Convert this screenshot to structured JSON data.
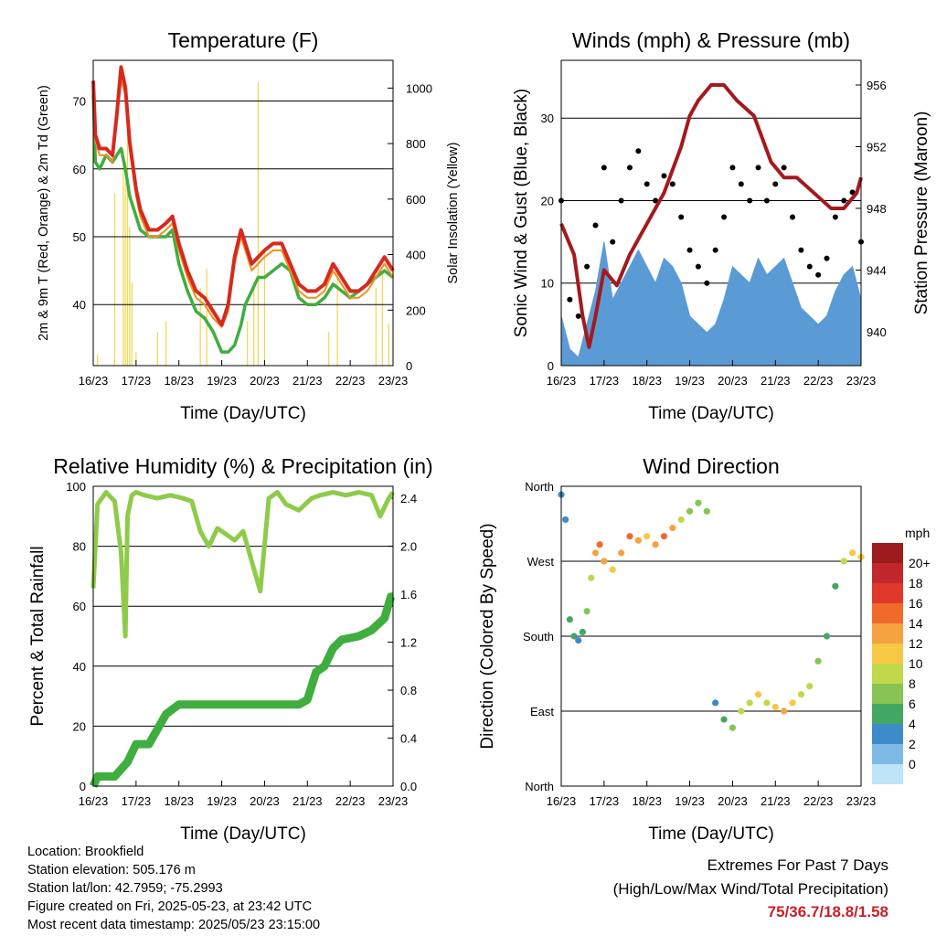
{
  "time_ticks": [
    "16/23",
    "17/23",
    "18/23",
    "19/23",
    "20/23",
    "21/23",
    "22/23",
    "23/23"
  ],
  "time_label": "Time (Day/UTC)",
  "colors": {
    "temp_red": "#d62a1e",
    "temp_orange": "#f28e1e",
    "dewpoint_green": "#3fae3f",
    "solar_yellow": "#f5d54a",
    "gust_black": "#000000",
    "wind_blue": "#5b9bd5",
    "pressure_maroon": "#a31a1f",
    "rh_light_green": "#8fcb4a",
    "precip_green": "#3fae3f",
    "extremes_red": "#c8202a"
  },
  "info": {
    "location": "Location: Brookfield",
    "elevation": "Station elevation: 505.176 m",
    "latlon": "Station lat/lon: 42.7959; -75.2993",
    "created": "Figure created on Fri, 2025-05-23, at 23:42 UTC",
    "latest": "Most recent data timestamp: 2025/05/23 23:15:00"
  },
  "extremes": {
    "line1": "Extremes For Past 7 Days",
    "line2": "(High/Low/Max Wind/Total Precipitation)",
    "values": "75/36.7/18.8/1.58"
  },
  "chart_data": [
    {
      "type": "line",
      "title": "Temperature (F)",
      "ylabel": "2m & 9m T (Red, Orange) & 2m Td (Green)",
      "ylabel_right": "Solar Insolation (Yellow)",
      "xlabel": "Time (Day/UTC)",
      "ylim": [
        31,
        76
      ],
      "yticks": [
        40,
        50,
        60,
        70
      ],
      "ylim_right": [
        0,
        1100
      ],
      "yticks_right": [
        0,
        200,
        400,
        600,
        800,
        1000
      ],
      "x_unit": "days since 16/23",
      "series": [
        {
          "color": "temp_red",
          "x": [
            0,
            0.05,
            0.15,
            0.3,
            0.45,
            0.55,
            0.65,
            0.75,
            0.85,
            1.0,
            1.1,
            1.3,
            1.5,
            1.7,
            1.85,
            2.0,
            2.2,
            2.4,
            2.6,
            2.8,
            3.0,
            3.15,
            3.3,
            3.45,
            3.55,
            3.7,
            3.85,
            4.0,
            4.2,
            4.4,
            4.6,
            4.8,
            5.0,
            5.2,
            5.4,
            5.6,
            5.8,
            6.0,
            6.2,
            6.4,
            6.6,
            6.8,
            7.0
          ],
          "y": [
            73,
            65,
            63,
            63,
            62,
            68,
            75,
            72,
            64,
            57,
            54,
            51,
            51,
            52,
            53,
            49,
            45,
            42,
            41,
            39,
            37,
            40,
            47,
            51,
            49,
            46,
            47,
            48,
            49,
            49,
            46,
            43,
            42,
            42,
            43,
            46,
            44,
            42,
            42,
            43,
            45,
            47,
            45
          ]
        },
        {
          "color": "temp_orange",
          "x": [
            0,
            0.05,
            0.15,
            0.3,
            0.45,
            0.55,
            0.65,
            0.75,
            0.85,
            1.0,
            1.1,
            1.3,
            1.5,
            1.7,
            1.85,
            2.0,
            2.2,
            2.4,
            2.6,
            2.8,
            3.0,
            3.15,
            3.3,
            3.45,
            3.55,
            3.7,
            3.85,
            4.0,
            4.2,
            4.4,
            4.6,
            4.8,
            5.0,
            5.2,
            5.4,
            5.6,
            5.8,
            6.0,
            6.2,
            6.4,
            6.6,
            6.8,
            7.0
          ],
          "y": [
            72,
            64,
            62,
            62,
            61,
            67,
            73,
            71,
            63,
            56,
            53,
            50,
            50,
            51,
            52,
            48,
            44,
            41,
            40,
            38,
            36.7,
            39,
            46,
            50,
            48,
            45,
            46,
            47,
            48,
            48,
            45,
            42,
            41,
            41,
            42,
            45,
            43,
            41,
            41,
            42,
            44,
            46,
            44
          ]
        },
        {
          "color": "dewpoint_green",
          "x": [
            0,
            0.05,
            0.15,
            0.3,
            0.45,
            0.55,
            0.65,
            0.75,
            0.85,
            1.0,
            1.1,
            1.3,
            1.5,
            1.7,
            1.85,
            2.0,
            2.2,
            2.4,
            2.6,
            2.8,
            3.0,
            3.15,
            3.3,
            3.45,
            3.55,
            3.7,
            3.85,
            4.0,
            4.2,
            4.4,
            4.6,
            4.8,
            5.0,
            5.2,
            5.4,
            5.6,
            5.8,
            6.0,
            6.2,
            6.4,
            6.6,
            6.8,
            7.0
          ],
          "y": [
            71,
            61,
            60,
            62,
            61,
            62,
            63,
            60,
            56,
            53,
            51,
            50,
            50,
            50,
            51,
            46,
            42,
            39,
            38,
            36,
            33,
            33,
            34,
            37,
            40,
            42,
            44,
            44,
            45,
            46,
            45,
            41,
            40,
            40,
            41,
            43,
            42,
            41,
            42,
            43,
            44,
            45,
            44
          ]
        },
        {
          "color": "solar_yellow",
          "axis": "right",
          "x": [
            0.1,
            0.5,
            0.7,
            0.75,
            0.8,
            0.85,
            0.9,
            1.0,
            1.5,
            1.7,
            2.5,
            2.65,
            3.6,
            3.75,
            3.85,
            4.0,
            5.5,
            5.7,
            6.6,
            6.75,
            6.9
          ],
          "y": [
            40,
            620,
            780,
            660,
            920,
            500,
            300,
            50,
            120,
            160,
            280,
            350,
            160,
            300,
            1020,
            420,
            120,
            350,
            280,
            330,
            150
          ]
        }
      ]
    },
    {
      "type": "scatter",
      "title": "Winds (mph) & Pressure (mb)",
      "ylabel": "Sonic Wind & Gust (Blue, Black)",
      "ylabel_right": "Station Pressure (Maroon)",
      "xlabel": "Time (Day/UTC)",
      "ylim": [
        0,
        37
      ],
      "yticks": [
        0,
        10,
        20,
        30
      ],
      "ylim_right": [
        937.8,
        957.6
      ],
      "yticks_right": [
        940,
        944,
        948,
        952,
        956
      ],
      "x_unit": "days since 16/23",
      "series": [
        {
          "color": "gust_black",
          "x": [
            0,
            0.2,
            0.4,
            0.6,
            0.8,
            1.0,
            1.2,
            1.4,
            1.6,
            1.8,
            2.0,
            2.2,
            2.4,
            2.6,
            2.8,
            3.0,
            3.2,
            3.4,
            3.6,
            3.8,
            4.0,
            4.2,
            4.4,
            4.6,
            4.8,
            5.0,
            5.2,
            5.4,
            5.6,
            5.8,
            6.0,
            6.2,
            6.4,
            6.6,
            6.8,
            7.0
          ],
          "y": [
            20,
            8,
            6,
            12,
            17,
            24,
            15,
            20,
            24,
            26,
            22,
            20,
            23,
            22,
            18,
            14,
            12,
            10,
            14,
            18,
            24,
            22,
            20,
            24,
            20,
            22,
            24,
            18,
            14,
            12,
            11,
            13,
            18,
            20,
            21,
            15
          ]
        },
        {
          "color": "wind_blue",
          "x": [
            0,
            0.2,
            0.4,
            0.6,
            0.8,
            1.0,
            1.2,
            1.4,
            1.6,
            1.8,
            2.0,
            2.2,
            2.4,
            2.6,
            2.8,
            3.0,
            3.2,
            3.4,
            3.6,
            3.8,
            4.0,
            4.2,
            4.4,
            4.6,
            4.8,
            5.0,
            5.2,
            5.4,
            5.6,
            5.8,
            6.0,
            6.2,
            6.4,
            6.6,
            6.8,
            7.0
          ],
          "y": [
            6,
            2,
            1,
            5,
            9,
            15,
            8,
            10,
            12,
            14,
            12,
            10,
            13,
            12,
            10,
            6,
            5,
            4,
            5,
            8,
            12,
            11,
            10,
            13,
            11,
            12,
            13,
            10,
            7,
            6,
            5,
            6,
            9,
            11,
            12,
            8
          ]
        },
        {
          "color": "pressure_maroon",
          "axis": "right",
          "x": [
            0,
            0.3,
            0.5,
            0.65,
            0.8,
            1.0,
            1.3,
            1.6,
            2.0,
            2.4,
            2.8,
            3.0,
            3.2,
            3.5,
            3.8,
            4.1,
            4.5,
            4.9,
            5.2,
            5.5,
            5.9,
            6.3,
            6.6,
            6.9,
            7.0
          ],
          "y": [
            947,
            945,
            941,
            939,
            941,
            944,
            943,
            945,
            947,
            949,
            952,
            954,
            955,
            956,
            956,
            955,
            954,
            951,
            950,
            950,
            949,
            948,
            948,
            949,
            950
          ]
        }
      ]
    },
    {
      "type": "line",
      "title": "Relative Humidity (%) & Precipitation (in)",
      "ylabel": "Percent & Total Rainfall",
      "xlabel": "Time (Day/UTC)",
      "ylim": [
        0,
        100
      ],
      "yticks": [
        0,
        20,
        40,
        60,
        80,
        100
      ],
      "ylim_right": [
        0,
        2.5
      ],
      "yticks_right": [
        "0.0",
        "0.4",
        "0.8",
        "1.2",
        "1.6",
        "2.0",
        "2.4"
      ],
      "x_unit": "days since 16/23",
      "series": [
        {
          "color": "rh_light_green",
          "x": [
            0,
            0.1,
            0.3,
            0.5,
            0.65,
            0.75,
            0.8,
            0.9,
            1.0,
            1.2,
            1.5,
            1.8,
            2.1,
            2.3,
            2.5,
            2.7,
            2.9,
            3.1,
            3.3,
            3.5,
            3.7,
            3.9,
            4.1,
            4.3,
            4.5,
            4.8,
            5.1,
            5.3,
            5.6,
            5.9,
            6.2,
            6.5,
            6.7,
            6.9,
            7.0
          ],
          "y": [
            66,
            94,
            98,
            95,
            78,
            50,
            90,
            97,
            98,
            97,
            96,
            97,
            96,
            95,
            85,
            80,
            86,
            84,
            82,
            85,
            75,
            65,
            96,
            98,
            94,
            92,
            96,
            97,
            98,
            97,
            98,
            97,
            90,
            96,
            98
          ]
        },
        {
          "color": "precip_green",
          "axis": "right",
          "x": [
            0,
            0.1,
            0.5,
            0.8,
            1.0,
            1.3,
            1.7,
            2.0,
            2.5,
            3.0,
            3.5,
            4.0,
            4.5,
            4.8,
            5.0,
            5.2,
            5.4,
            5.6,
            5.8,
            6.2,
            6.5,
            6.8,
            6.95,
            7.0
          ],
          "y": [
            0,
            0.08,
            0.08,
            0.2,
            0.35,
            0.35,
            0.6,
            0.68,
            0.68,
            0.68,
            0.68,
            0.68,
            0.68,
            0.68,
            0.72,
            0.95,
            1.0,
            1.15,
            1.22,
            1.25,
            1.3,
            1.4,
            1.58,
            1.58
          ]
        }
      ]
    },
    {
      "type": "scatter",
      "title": "Wind Direction",
      "ylabel": "Direction (Colored By Speed)",
      "xlabel": "Time (Day/UTC)",
      "yticks": [
        "North",
        "West",
        "South",
        "East",
        "North"
      ],
      "colorbar": {
        "title": "mph",
        "labels": [
          "20+",
          "18",
          "16",
          "14",
          "12",
          "10",
          "8",
          "6",
          "4",
          "2",
          "0"
        ],
        "colors": [
          "#9b1b1e",
          "#c1272d",
          "#e0392b",
          "#f26a2b",
          "#f5a340",
          "#f7c843",
          "#c0d84a",
          "#88c453",
          "#43a764",
          "#3d8bc9",
          "#7fb9e6",
          "#bfe3f7"
        ]
      },
      "series": [
        {
          "name": "direction",
          "x": [
            0,
            0.1,
            0.2,
            0.3,
            0.4,
            0.5,
            0.6,
            0.7,
            0.8,
            0.9,
            1.0,
            1.2,
            1.4,
            1.6,
            1.8,
            2.0,
            2.2,
            2.4,
            2.6,
            2.8,
            3.0,
            3.2,
            3.4,
            3.6,
            3.8,
            4.0,
            4.2,
            4.4,
            4.6,
            4.8,
            5.0,
            5.2,
            5.4,
            5.6,
            5.8,
            6.0,
            6.2,
            6.4,
            6.6,
            6.8,
            7.0
          ],
          "y": [
            350,
            320,
            200,
            180,
            175,
            185,
            210,
            250,
            280,
            290,
            270,
            260,
            280,
            300,
            295,
            300,
            290,
            300,
            310,
            320,
            330,
            340,
            330,
            100,
            80,
            70,
            90,
            100,
            110,
            100,
            95,
            90,
            100,
            110,
            120,
            150,
            180,
            240,
            270,
            280,
            275
          ],
          "speed": [
            2,
            3,
            4,
            5,
            3,
            4,
            6,
            9,
            12,
            14,
            12,
            10,
            12,
            14,
            12,
            10,
            12,
            14,
            13,
            8,
            6,
            7,
            6,
            3,
            4,
            6,
            8,
            9,
            10,
            9,
            11,
            12,
            10,
            9,
            8,
            6,
            4,
            5,
            9,
            11,
            10
          ]
        }
      ]
    }
  ]
}
